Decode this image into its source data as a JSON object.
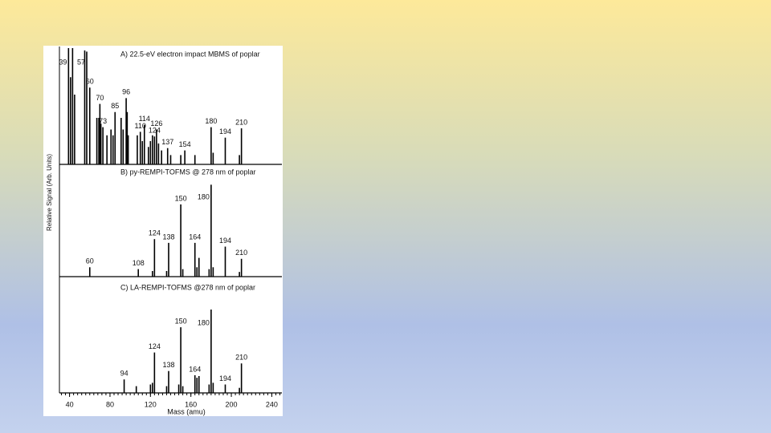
{
  "chart_data": {
    "type": "stick",
    "x_label": "Mass (amu)",
    "y_label": "Relative Signal (Arb. Units)",
    "xlim": [
      30,
      250
    ],
    "xticks": [
      40,
      80,
      120,
      160,
      200,
      240
    ],
    "color": "#000000",
    "panels": [
      {
        "title": "A) 22.5-eV electron impact MBMS of poplar",
        "ylim": [
          0,
          100
        ],
        "peaks": {
          "x": [
            39,
            57,
            60,
            70,
            73,
            85,
            96,
            110,
            114,
            124,
            126,
            137,
            154,
            180,
            194,
            210
          ],
          "values": [
            100,
            97,
            66,
            52,
            32,
            45,
            57,
            28,
            34,
            24,
            30,
            14,
            12,
            32,
            23,
            31
          ]
        },
        "minor": {
          "x": [
            41,
            43,
            45,
            55,
            67,
            69,
            71,
            77,
            81,
            83,
            91,
            93,
            97,
            98,
            107,
            112,
            118,
            120,
            122,
            128,
            131,
            140,
            150,
            164,
            182,
            208
          ],
          "values": [
            75,
            100,
            60,
            98,
            40,
            40,
            35,
            25,
            30,
            25,
            40,
            30,
            45,
            25,
            25,
            20,
            15,
            20,
            25,
            18,
            12,
            8,
            8,
            8,
            10,
            8
          ]
        }
      },
      {
        "title": "B) py-REMPI-TOFMS @ 278 nm of poplar",
        "ylim": [
          0,
          100
        ],
        "peaks": {
          "x": [
            60,
            108,
            124,
            138,
            150,
            164,
            180,
            194,
            210
          ],
          "values": [
            10,
            8,
            40,
            36,
            77,
            36,
            98,
            32,
            19
          ]
        },
        "minor": {
          "x": [
            122,
            136,
            152,
            166,
            168,
            178,
            182,
            208
          ],
          "values": [
            6,
            6,
            8,
            10,
            20,
            8,
            10,
            5
          ]
        }
      },
      {
        "title": "C) LA-REMPI-TOFMS @278 nm of poplar",
        "ylim": [
          0,
          100
        ],
        "peaks": {
          "x": [
            94,
            124,
            138,
            150,
            164,
            180,
            194,
            210
          ],
          "values": [
            16,
            48,
            26,
            78,
            21,
            99,
            10,
            35
          ]
        },
        "minor": {
          "x": [
            106,
            120,
            122,
            136,
            148,
            152,
            166,
            168,
            178,
            182,
            208
          ],
          "values": [
            8,
            10,
            12,
            8,
            10,
            8,
            18,
            20,
            10,
            12,
            6
          ]
        }
      }
    ]
  }
}
